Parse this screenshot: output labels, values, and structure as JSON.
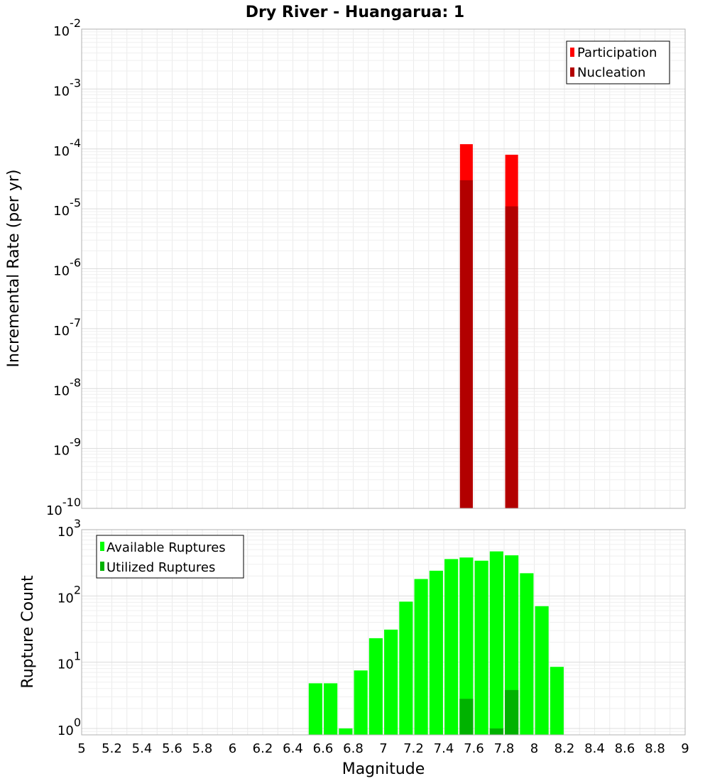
{
  "chart_data": [
    {
      "type": "bar",
      "title": "Dry River - Huangarua: 1",
      "xlabel": "",
      "ylabel": "Incremental Rate (per yr)",
      "yscale": "log",
      "xlim": [
        5,
        9
      ],
      "ylim": [
        1e-10,
        0.01
      ],
      "ytick_exponents": [
        -10,
        -9,
        -8,
        -7,
        -6,
        -5,
        -4,
        -3,
        -2
      ],
      "legend_position": "top-right",
      "bar_width": 0.085,
      "series": [
        {
          "name": "Participation",
          "color": "#ff0000",
          "x": [
            7.55,
            7.85
          ],
          "values": [
            0.00012,
            8e-05
          ]
        },
        {
          "name": "Nucleation",
          "color": "#b20000",
          "x": [
            7.55,
            7.85
          ],
          "values": [
            3e-05,
            1.1e-05
          ]
        }
      ]
    },
    {
      "type": "bar",
      "title": "",
      "xlabel": "Magnitude",
      "ylabel": "Rupture Count",
      "yscale": "log",
      "xlim": [
        5,
        9
      ],
      "ylim": [
        0.8,
        1000
      ],
      "ytick_exponents": [
        0,
        1,
        2,
        3
      ],
      "xtick_labels": [
        "5",
        "5.2",
        "5.4",
        "5.6",
        "5.8",
        "6",
        "6.2",
        "6.4",
        "6.6",
        "6.8",
        "7",
        "7.2",
        "7.4",
        "7.6",
        "7.8",
        "8",
        "8.2",
        "8.4",
        "8.6",
        "8.8",
        "9"
      ],
      "legend_position": "top-left",
      "bar_width": 0.09,
      "series": [
        {
          "name": "Available Ruptures",
          "color": "#00ff00",
          "x": [
            6.55,
            6.65,
            6.75,
            6.85,
            6.95,
            7.05,
            7.15,
            7.25,
            7.35,
            7.45,
            7.55,
            7.65,
            7.75,
            7.85,
            7.95,
            8.05,
            8.15
          ],
          "values": [
            4.8,
            4.8,
            1,
            7.5,
            23,
            31,
            82,
            180,
            240,
            360,
            380,
            340,
            470,
            410,
            220,
            70,
            8.5
          ]
        },
        {
          "name": "Utilized Ruptures",
          "color": "#00b200",
          "x": [
            7.55,
            7.75,
            7.85
          ],
          "values": [
            2.8,
            1,
            3.8
          ]
        }
      ]
    }
  ]
}
